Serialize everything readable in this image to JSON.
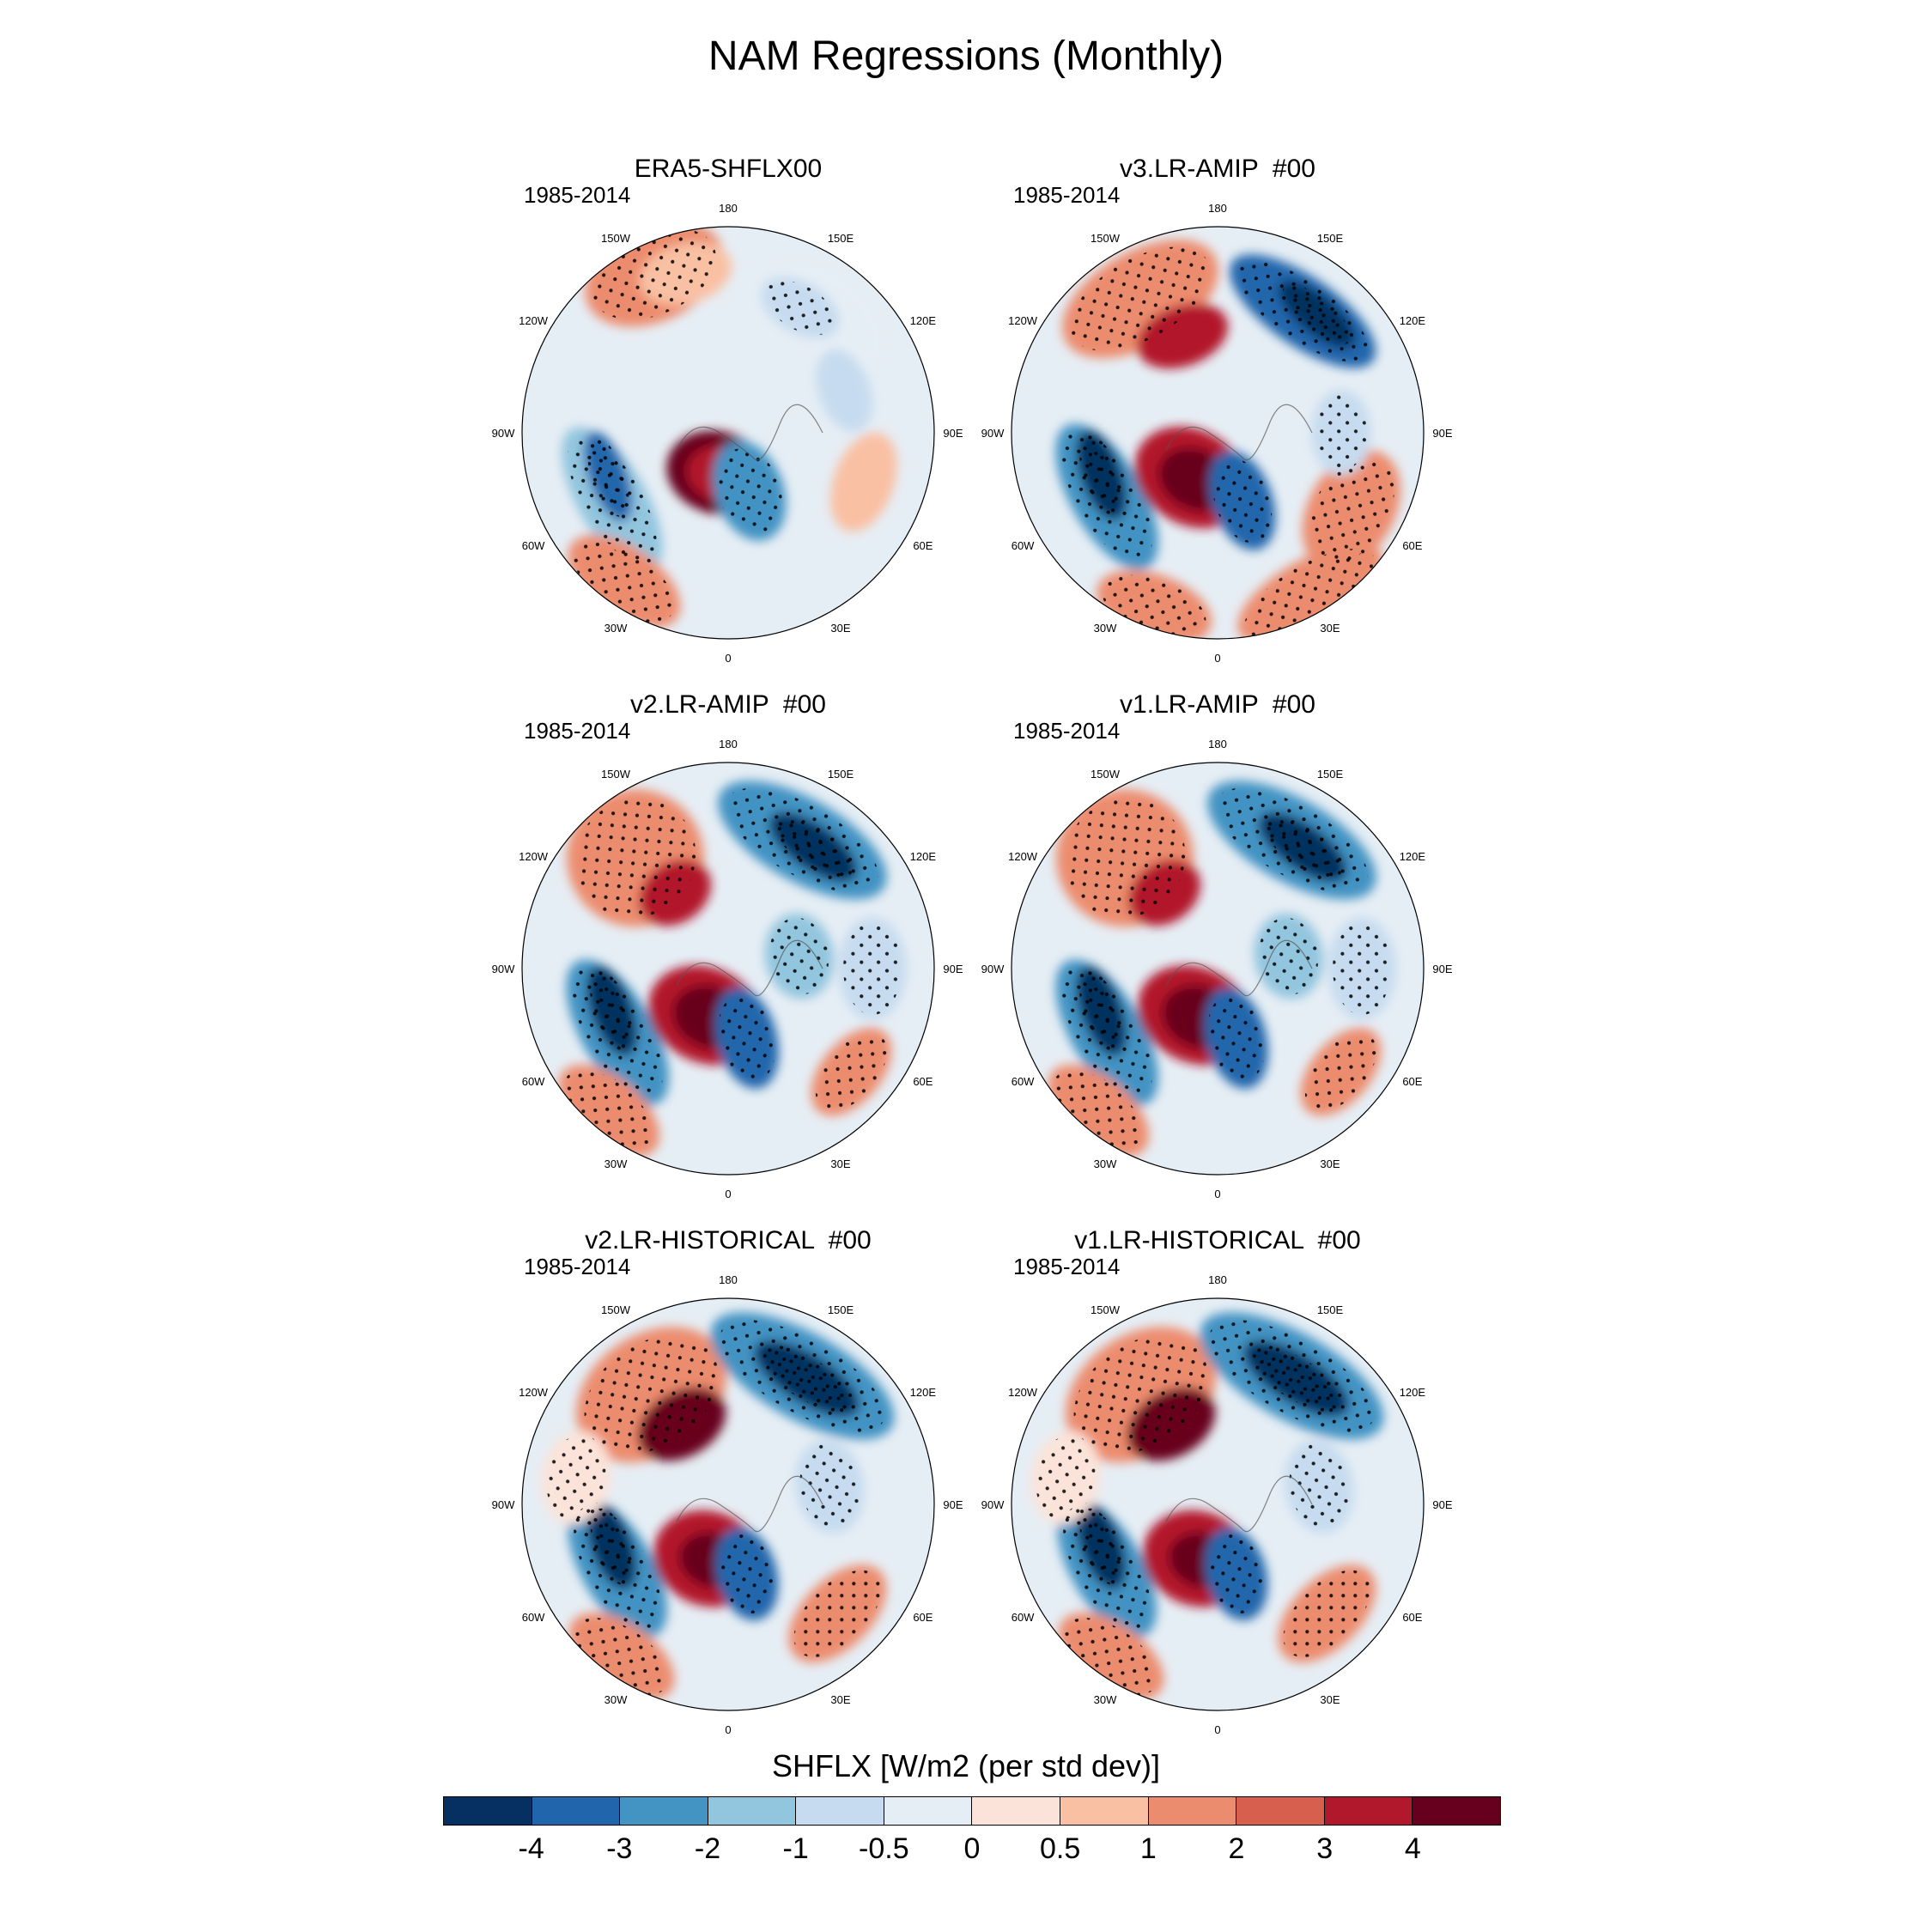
{
  "title": "NAM Regressions (Monthly)",
  "period": "1985-2014",
  "panels": [
    {
      "title": "ERA5-SHFLX00",
      "pattern": 0
    },
    {
      "title": "v3.LR-AMIP  #00",
      "pattern": 1
    },
    {
      "title": "v2.LR-AMIP  #00",
      "pattern": 2
    },
    {
      "title": "v1.LR-AMIP  #00",
      "pattern": 2
    },
    {
      "title": "v2.LR-HISTORICAL  #00",
      "pattern": 3
    },
    {
      "title": "v1.LR-HISTORICAL  #00",
      "pattern": 3
    }
  ],
  "lon_labels": [
    "180",
    "150E",
    "120E",
    "90E",
    "60E",
    "30E",
    "0",
    "30W",
    "60W",
    "90W",
    "120W",
    "150W"
  ],
  "colorbar": {
    "title": "SHFLX [W/m2 (per std dev)]",
    "labels": [
      "-4",
      "-3",
      "-2",
      "-1",
      "-0.5",
      "0",
      "0.5",
      "1",
      "2",
      "3",
      "4"
    ],
    "colors": [
      "#053061",
      "#2166ac",
      "#4393c3",
      "#92c5de",
      "#c6dbef",
      "#e6eef5",
      "#fbe3d9",
      "#f9c0a3",
      "#ec8c6e",
      "#d6604d",
      "#b2182b",
      "#67001f"
    ]
  }
}
